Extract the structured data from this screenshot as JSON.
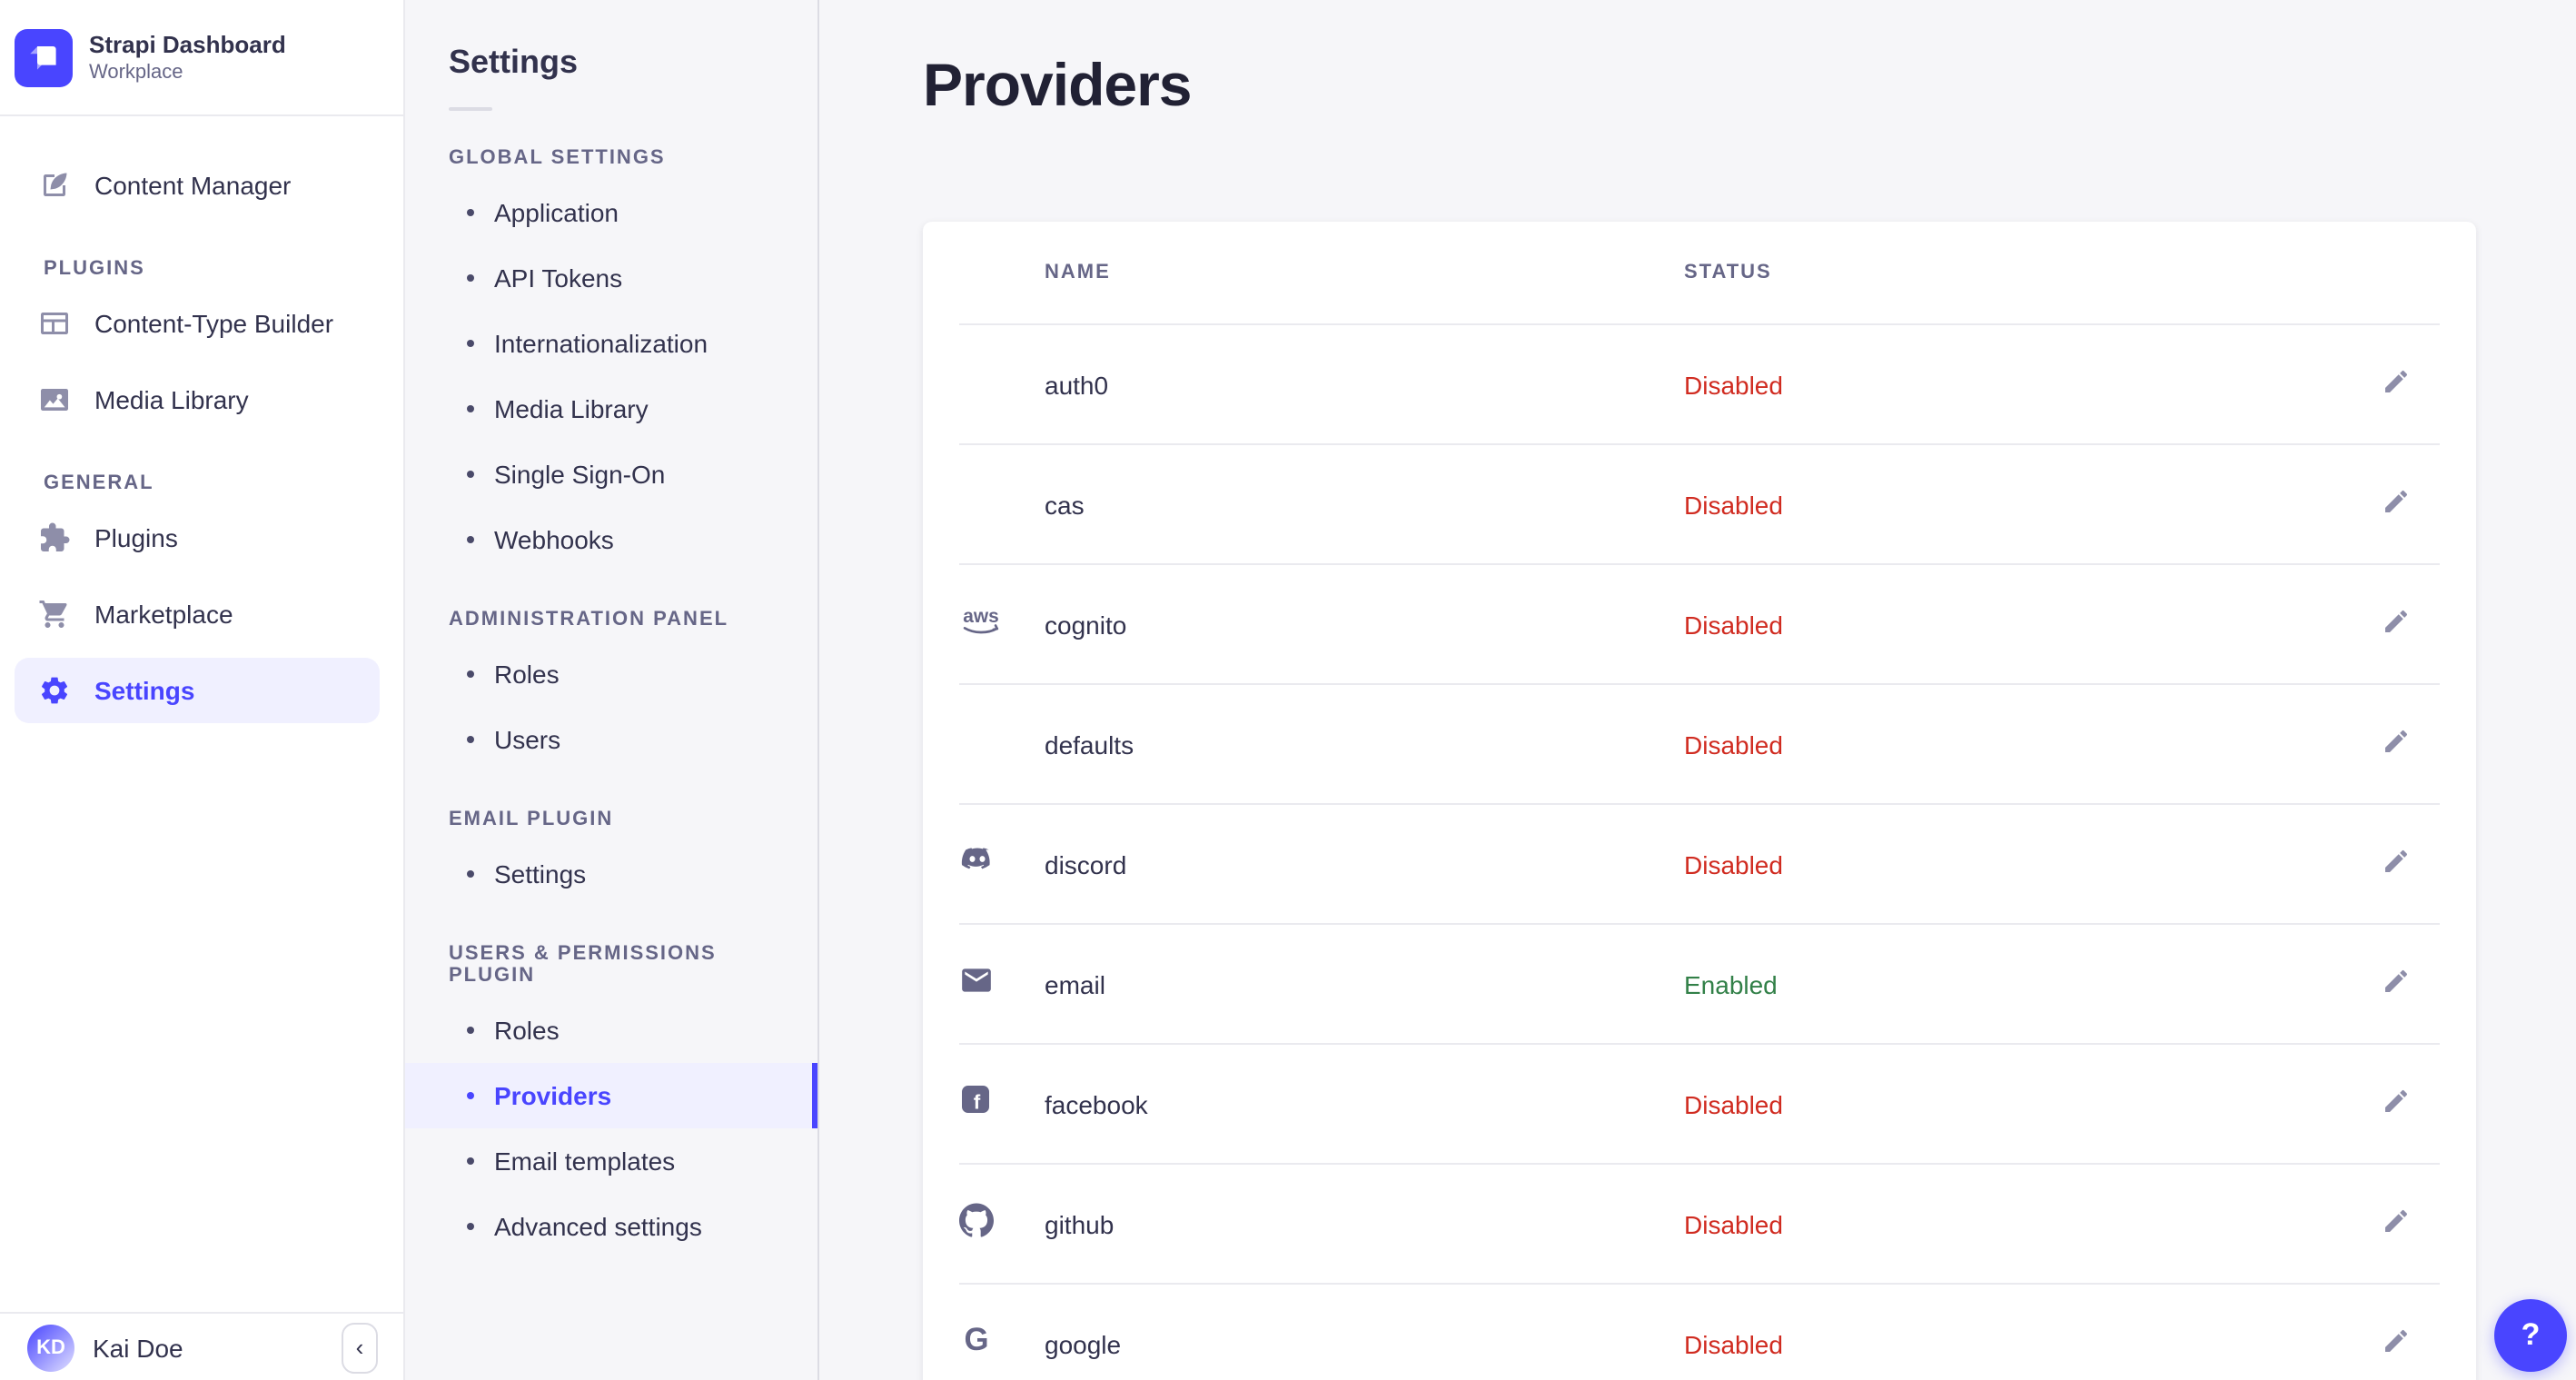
{
  "sidebar": {
    "brand": {
      "title": "Strapi Dashboard",
      "subtitle": "Workplace"
    },
    "sections": [
      {
        "label": null,
        "items": [
          {
            "label": "Content Manager",
            "icon": "content-manager"
          }
        ]
      },
      {
        "label": "PLUGINS",
        "items": [
          {
            "label": "Content-Type Builder",
            "icon": "content-type-builder"
          },
          {
            "label": "Media Library",
            "icon": "media-library"
          }
        ]
      },
      {
        "label": "GENERAL",
        "items": [
          {
            "label": "Plugins",
            "icon": "plugins"
          },
          {
            "label": "Marketplace",
            "icon": "marketplace"
          },
          {
            "label": "Settings",
            "icon": "settings",
            "active": true
          }
        ]
      }
    ],
    "user": {
      "initials": "KD",
      "name": "Kai Doe"
    },
    "collapse_icon": "‹"
  },
  "subnav": {
    "title": "Settings",
    "sections": [
      {
        "label": "GLOBAL SETTINGS",
        "items": [
          {
            "label": "Application"
          },
          {
            "label": "API Tokens"
          },
          {
            "label": "Internationalization"
          },
          {
            "label": "Media Library"
          },
          {
            "label": "Single Sign-On"
          },
          {
            "label": "Webhooks"
          }
        ]
      },
      {
        "label": "ADMINISTRATION PANEL",
        "items": [
          {
            "label": "Roles"
          },
          {
            "label": "Users"
          }
        ]
      },
      {
        "label": "EMAIL PLUGIN",
        "items": [
          {
            "label": "Settings"
          }
        ]
      },
      {
        "label": "USERS & PERMISSIONS PLUGIN",
        "items": [
          {
            "label": "Roles"
          },
          {
            "label": "Providers",
            "active": true
          },
          {
            "label": "Email templates"
          },
          {
            "label": "Advanced settings"
          }
        ]
      }
    ]
  },
  "main": {
    "title": "Providers",
    "table": {
      "columns": [
        "NAME",
        "STATUS"
      ],
      "rows": [
        {
          "name": "auth0",
          "icon": null,
          "status": "Disabled"
        },
        {
          "name": "cas",
          "icon": null,
          "status": "Disabled"
        },
        {
          "name": "cognito",
          "icon": "aws",
          "status": "Disabled"
        },
        {
          "name": "defaults",
          "icon": null,
          "status": "Disabled"
        },
        {
          "name": "discord",
          "icon": "discord",
          "status": "Disabled"
        },
        {
          "name": "email",
          "icon": "email",
          "status": "Enabled"
        },
        {
          "name": "facebook",
          "icon": "facebook",
          "status": "Disabled"
        },
        {
          "name": "github",
          "icon": "github",
          "status": "Disabled"
        },
        {
          "name": "google",
          "icon": "google",
          "status": "Disabled"
        }
      ]
    },
    "help_label": "?"
  },
  "colors": {
    "primary": "#4945ff",
    "primary_light": "#f0f0ff",
    "danger": "#d02b20",
    "success": "#328048",
    "text": "#32324d",
    "text_secondary": "#666687",
    "icon_gray": "#8e8ea9"
  }
}
